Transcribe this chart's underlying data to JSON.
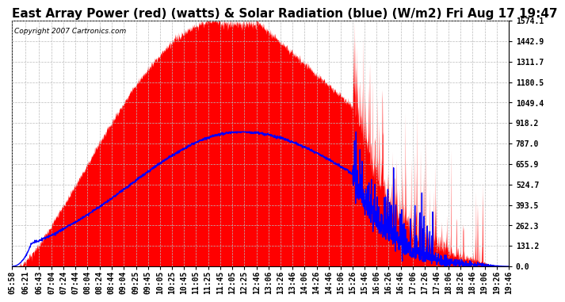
{
  "title": "East Array Power (red) (watts) & Solar Radiation (blue) (W/m2) Fri Aug 17 19:47",
  "copyright": "Copyright 2007 Cartronics.com",
  "yticks": [
    0.0,
    131.2,
    262.3,
    393.5,
    524.7,
    655.9,
    787.0,
    918.2,
    1049.4,
    1180.5,
    1311.7,
    1442.9,
    1574.1
  ],
  "ymax": 1574.1,
  "ymin": 0.0,
  "background_color": "#ffffff",
  "plot_bg_color": "#ffffff",
  "grid_color": "#bbbbbb",
  "red_color": "#ff0000",
  "blue_color": "#0000ff",
  "title_fontsize": 11,
  "tick_fontsize": 7,
  "time_labels": [
    "05:58",
    "06:21",
    "06:43",
    "07:04",
    "07:24",
    "07:44",
    "08:04",
    "08:24",
    "08:44",
    "09:04",
    "09:25",
    "09:45",
    "10:05",
    "10:25",
    "10:45",
    "11:05",
    "11:25",
    "11:45",
    "12:05",
    "12:25",
    "12:46",
    "13:06",
    "13:26",
    "13:46",
    "14:06",
    "14:26",
    "14:46",
    "15:06",
    "15:26",
    "15:46",
    "16:06",
    "16:26",
    "16:46",
    "17:06",
    "17:26",
    "17:46",
    "18:06",
    "18:26",
    "18:46",
    "19:06",
    "19:26",
    "19:46"
  ]
}
